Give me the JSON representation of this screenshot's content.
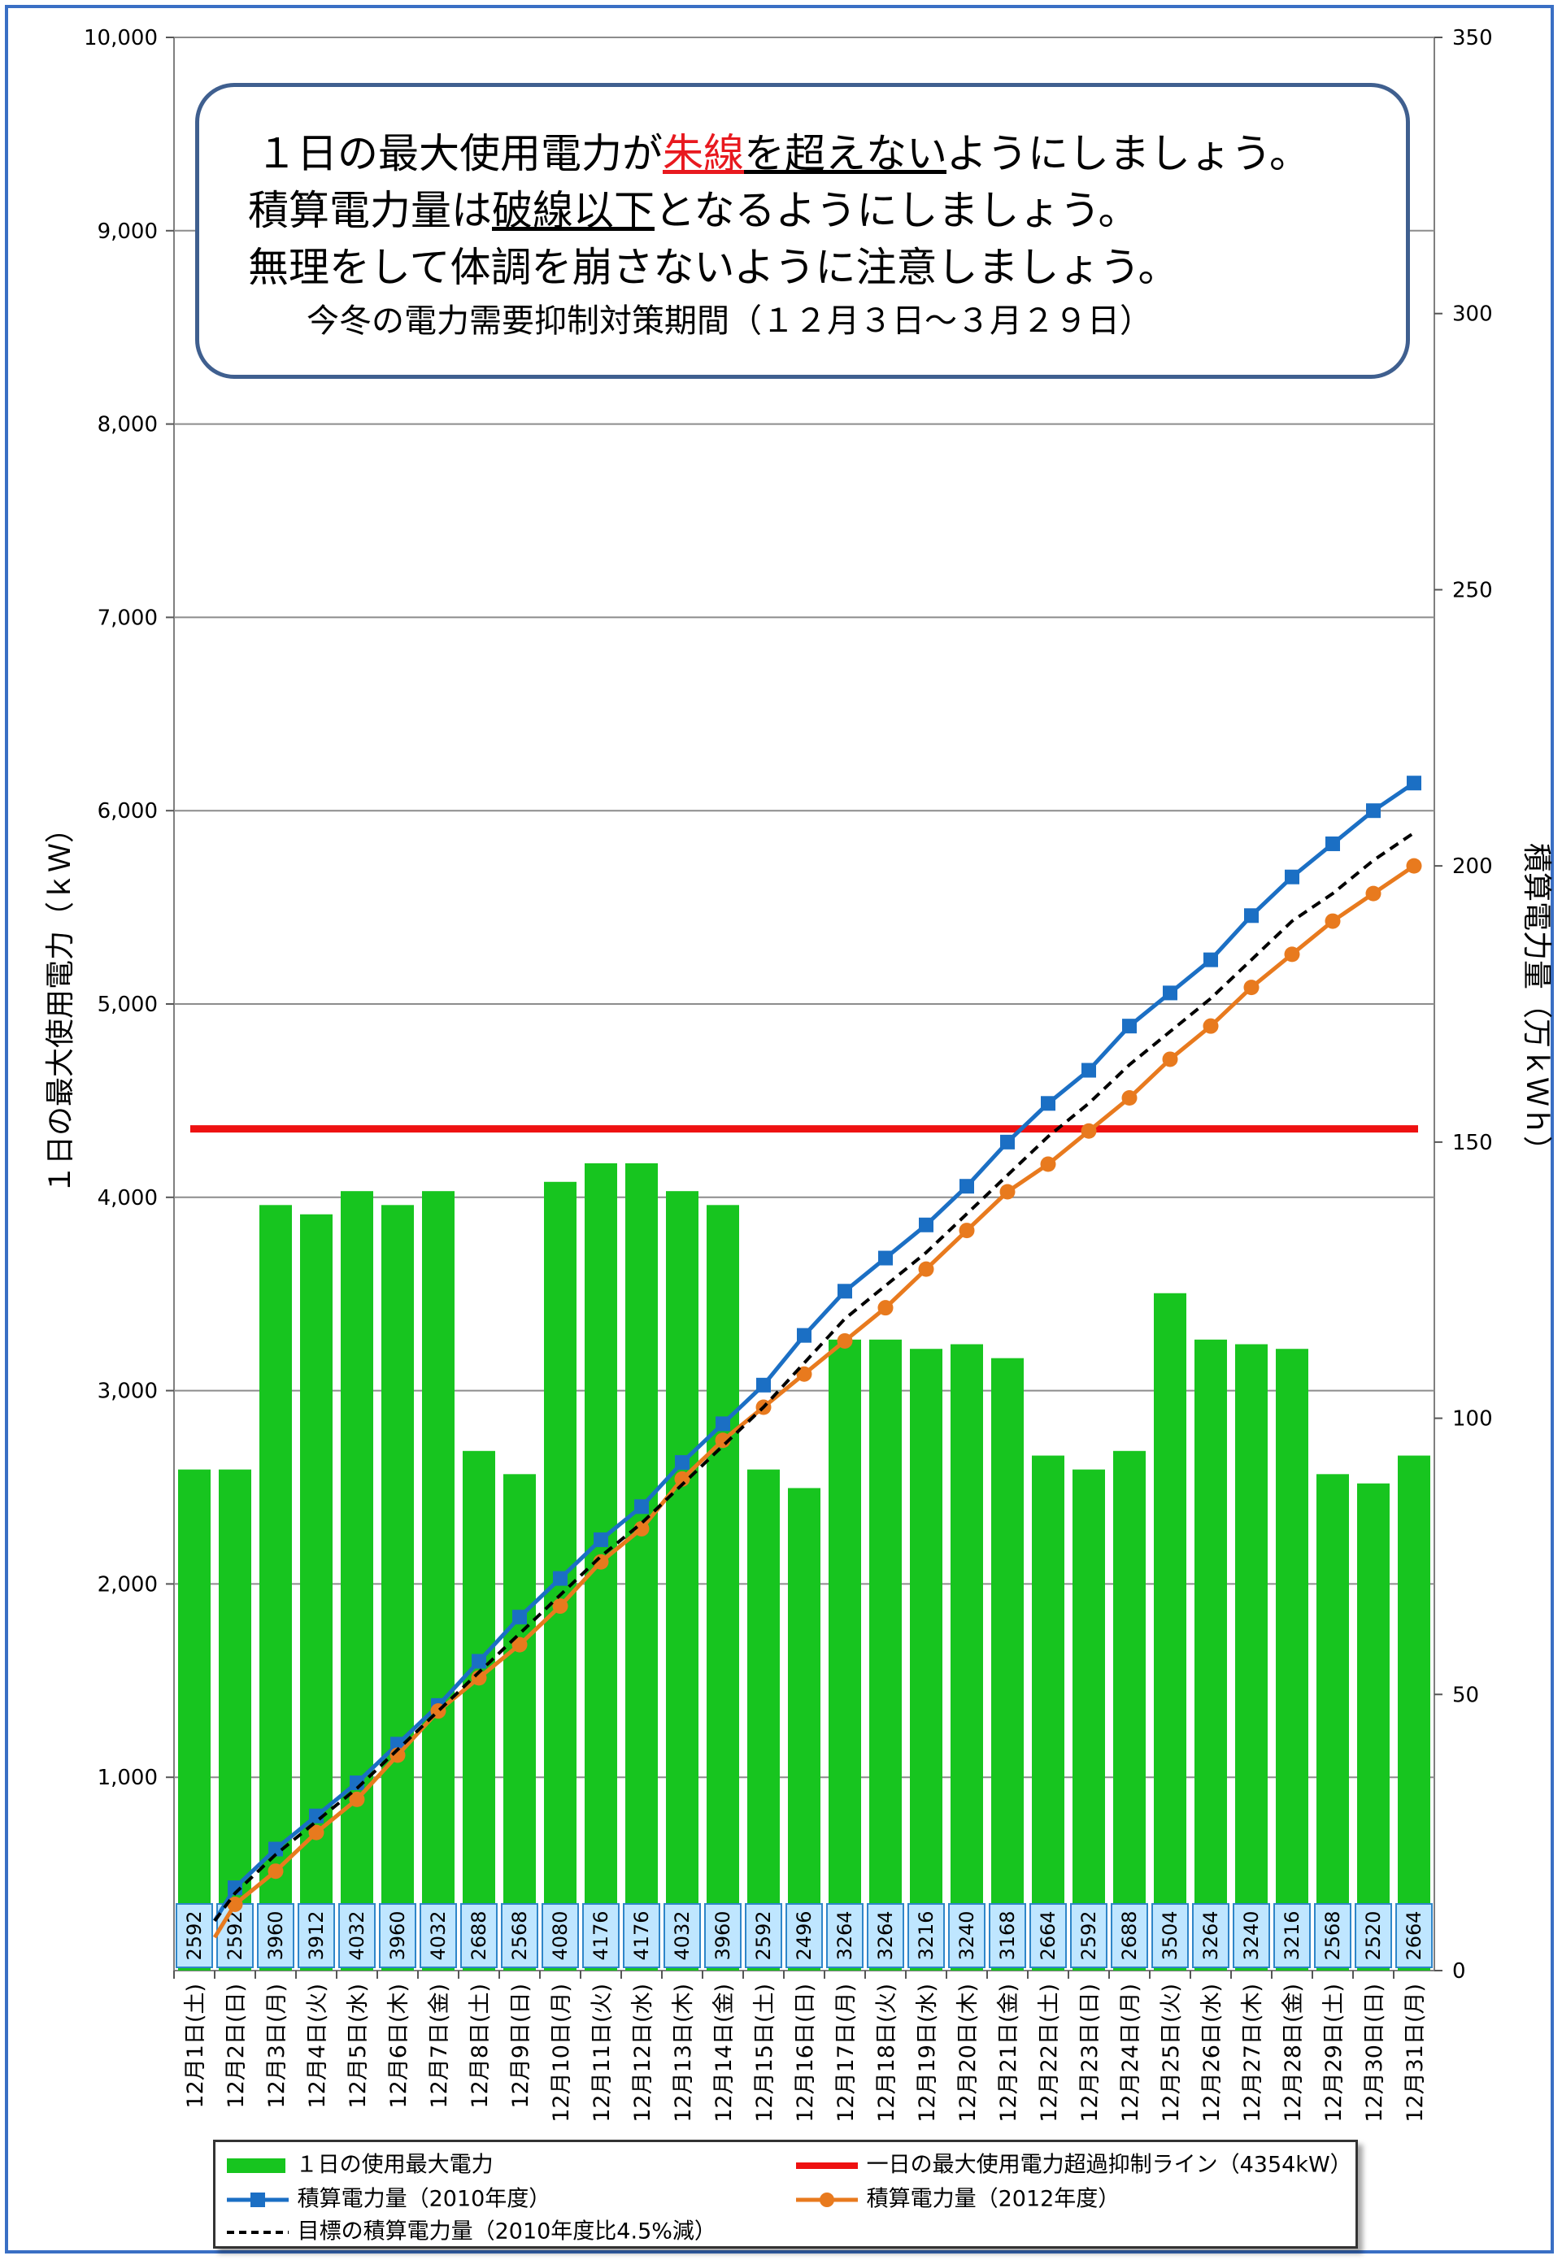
{
  "notice": {
    "line1_pre": "１日の最大使用電力が",
    "line1_red": "朱線",
    "line1_mid": "を超えない",
    "line1_post": "ようにしましょう。",
    "line2_pre": "積算電力量は",
    "line2_under": "破線以下",
    "line2_post": "となるようにしましょう。",
    "line3": "無理をして体調を崩さないように注意しましょう。",
    "line4": "今冬の電力需要抑制対策期間（１２月３日～３月２９日）"
  },
  "legend": {
    "bar": "１日の使用最大電力",
    "limit": "一日の最大使用電力超過抑制ライン（4354kW）",
    "s2010": "積算電力量（2010年度）",
    "s2012": "積算電力量（2012年度）",
    "target": "目標の積算電力量（2010年度比4.5%減）"
  },
  "colors": {
    "bar": "#17c51f",
    "limit": "#ee1111",
    "s2010": "#1b6fc4",
    "s2012": "#e87a1e",
    "target": "#000000",
    "label_bg": "#bfe6ff",
    "label_border": "#2f86c9"
  },
  "chart_data": {
    "type": "bar",
    "ylabel": "１日の最大使用電力（ｋＷ）",
    "y2label": "積算電力量（万ｋＷｈ）",
    "ylim": [
      0,
      10000
    ],
    "y2lim": [
      0,
      350
    ],
    "yticks": [
      "10,000",
      "9,000",
      "8,000",
      "7,000",
      "6,000",
      "5,000",
      "4,000",
      "3,000",
      "2,000",
      "1,000"
    ],
    "y2ticks": [
      "350",
      "300",
      "250",
      "200",
      "150",
      "100",
      "50",
      "0"
    ],
    "grid": true,
    "legend_position": "bottom",
    "categories": [
      "12月1日(土)",
      "12月2日(日)",
      "12月3日(月)",
      "12月4日(火)",
      "12月5日(水)",
      "12月6日(木)",
      "12月7日(金)",
      "12月8日(土)",
      "12月9日(日)",
      "12月10日(月)",
      "12月11日(火)",
      "12月12日(水)",
      "12月13日(木)",
      "12月14日(金)",
      "12月15日(土)",
      "12月16日(日)",
      "12月17日(月)",
      "12月18日(火)",
      "12月19日(水)",
      "12月20日(木)",
      "12月21日(金)",
      "12月22日(土)",
      "12月23日(日)",
      "12月24日(月)",
      "12月25日(火)",
      "12月26日(水)",
      "12月27日(木)",
      "12月28日(金)",
      "12月29日(土)",
      "12月30日(日)",
      "12月31日(月)"
    ],
    "bars": [
      2592,
      2592,
      3960,
      3912,
      4032,
      3960,
      4032,
      2688,
      2568,
      4080,
      4176,
      4176,
      4032,
      3960,
      2592,
      2496,
      3264,
      3264,
      3216,
      3240,
      3168,
      2664,
      2592,
      2688,
      3504,
      3264,
      3240,
      3216,
      2568,
      2520,
      2664
    ],
    "limit_line": 4354,
    "series": [
      {
        "name": "積算電力量（2010年度）",
        "axis": "right",
        "values": [
          9,
          15,
          22,
          28,
          34,
          41,
          48,
          56,
          64,
          71,
          78,
          84,
          92,
          99,
          106,
          115,
          123,
          129,
          135,
          142,
          150,
          157,
          163,
          171,
          177,
          183,
          191,
          198,
          204,
          210,
          215
        ]
      },
      {
        "name": "積算電力量（2012年度）",
        "axis": "right",
        "values": [
          6,
          12,
          18,
          25,
          31,
          39,
          47,
          53,
          59,
          66,
          74,
          80,
          89,
          96,
          102,
          108,
          114,
          120,
          127,
          134,
          141,
          146,
          152,
          158,
          165,
          171,
          178,
          184,
          190,
          195,
          200
        ]
      },
      {
        "name": "目標の積算電力量（2010年度比4.5%減）",
        "axis": "right",
        "style": "dashed",
        "values": [
          9,
          14,
          21,
          27,
          33,
          40,
          47,
          54,
          61,
          68,
          75,
          81,
          88,
          95,
          102,
          110,
          118,
          124,
          130,
          137,
          144,
          151,
          157,
          164,
          170,
          176,
          183,
          190,
          195,
          201,
          206
        ]
      }
    ]
  }
}
